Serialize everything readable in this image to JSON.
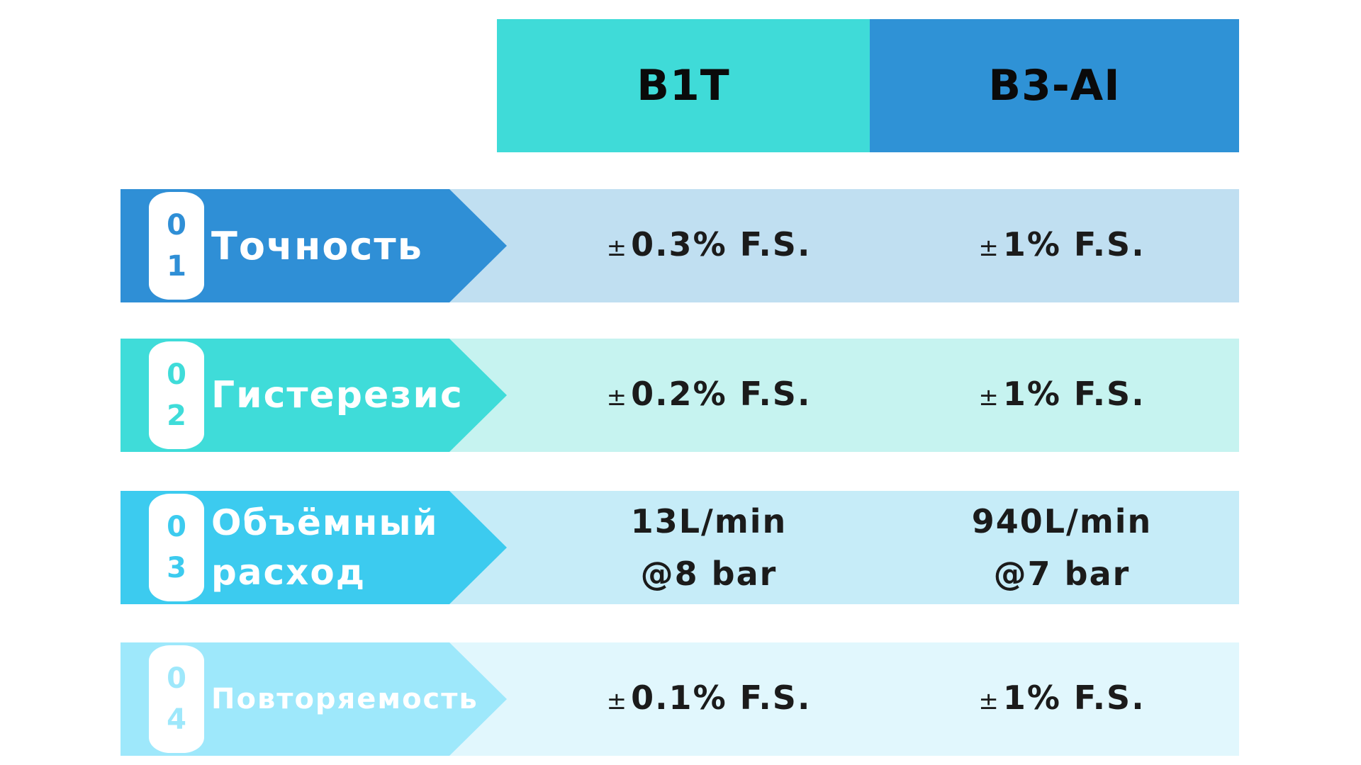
{
  "header": {
    "col1": {
      "label": "B1T",
      "color": "#3fdbd8"
    },
    "col2": {
      "label": "B3-AI",
      "color": "#2f92d6"
    }
  },
  "rows": [
    {
      "number_top": "0",
      "number_bottom": "1",
      "label_lines": [
        "Точность"
      ],
      "b1t": [
        "±0.3% F.S."
      ],
      "b3": [
        "±1% F.S."
      ],
      "label_color": "#2f8fd6",
      "row_color": "#c0dff1",
      "number_color": "#2f8fd6"
    },
    {
      "number_top": "0",
      "number_bottom": "2",
      "label_lines": [
        "Гистерезис"
      ],
      "b1t": [
        "±0.2% F.S."
      ],
      "b3": [
        "±1% F.S."
      ],
      "label_color": "#3fdcd9",
      "row_color": "#c6f3f0",
      "number_color": "#3fdcd9"
    },
    {
      "number_top": "0",
      "number_bottom": "3",
      "label_lines": [
        "Объёмный",
        "расход"
      ],
      "b1t": [
        "13L/min",
        "@8 bar"
      ],
      "b3": [
        "940L/min",
        "@7 bar"
      ],
      "label_color": "#3ccbef",
      "row_color": "#c6ecf8",
      "number_color": "#3ccbef"
    },
    {
      "number_top": "0",
      "number_bottom": "4",
      "label_lines": [
        "Повторяемость"
      ],
      "b1t": [
        "±0.1% F.S."
      ],
      "b3": [
        "±1% F.S."
      ],
      "label_color": "#9ee8fb",
      "row_color": "#e1f7fd",
      "number_color": "#9ee8fb"
    }
  ]
}
